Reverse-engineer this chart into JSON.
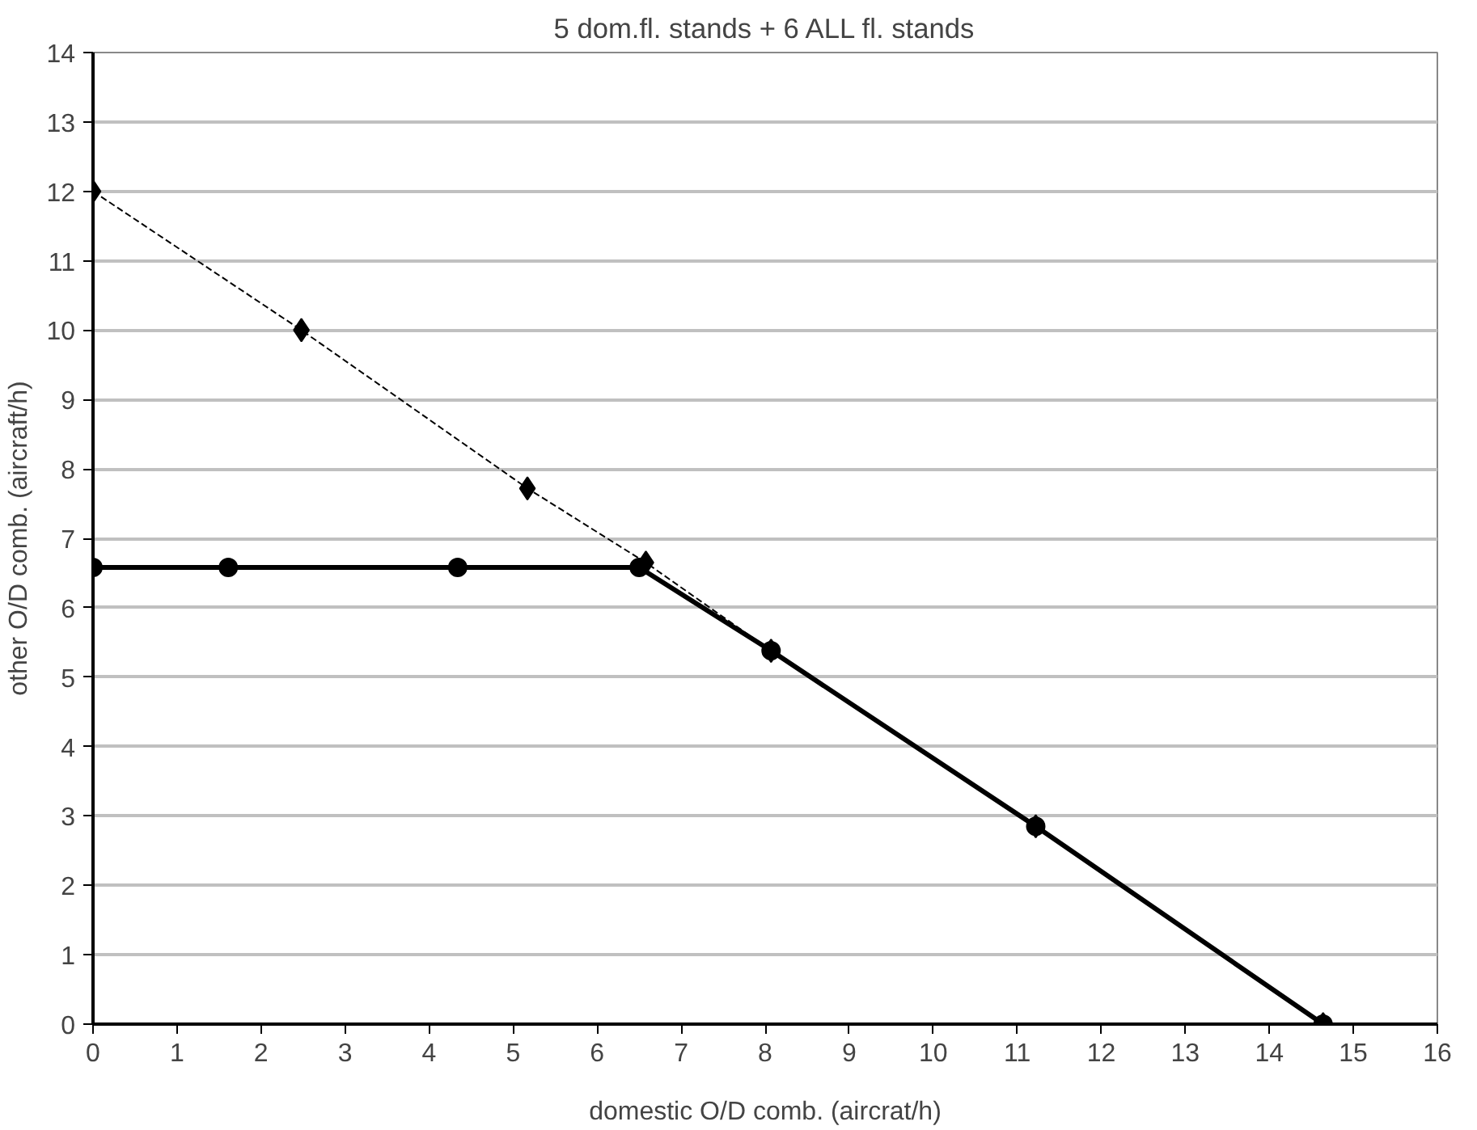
{
  "chart_data": {
    "type": "line",
    "title": "5 dom.fl. stands + 6 ALL fl. stands",
    "xlabel": "domestic O/D comb. (aircrat/h)",
    "ylabel": "other O/D comb. (aircraft/h)",
    "series": [
      {
        "color": "#000000",
        "marker": "diamond",
        "line_style": "dashed",
        "x": [
          0,
          2.48,
          5.17,
          6.58,
          8.07,
          11.22,
          14.64
        ],
        "values": [
          12,
          10,
          7.72,
          6.65,
          5.38,
          2.85,
          0
        ]
      },
      {
        "color": "#000000",
        "marker": "circle",
        "line_style": "solid",
        "x": [
          0,
          1.61,
          4.34,
          6.5,
          8.07,
          11.22,
          14.64
        ],
        "values": [
          6.58,
          6.58,
          6.58,
          6.58,
          5.38,
          2.85,
          0
        ]
      }
    ],
    "xlim": [
      0,
      16
    ],
    "xticks": [
      0,
      1,
      2,
      3,
      4,
      5,
      6,
      7,
      8,
      9,
      10,
      11,
      12,
      13,
      14,
      15,
      16
    ],
    "ylim": [
      0,
      14
    ],
    "yticks": [
      0,
      1,
      2,
      3,
      4,
      5,
      6,
      7,
      8,
      9,
      10,
      11,
      12,
      13,
      14
    ],
    "grid": "y"
  }
}
